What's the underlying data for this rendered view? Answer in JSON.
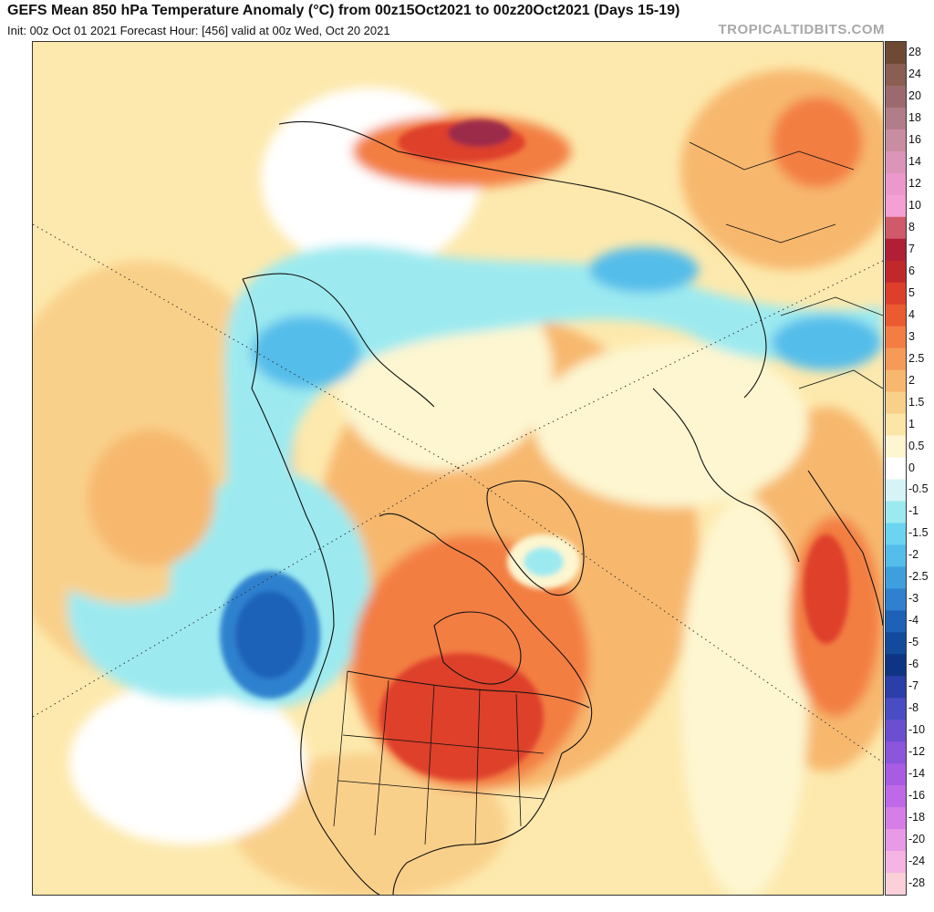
{
  "header": {
    "title": "GEFS Mean 850 hPa Temperature Anomaly (°C) from 00z15Oct2021 to 00z20Oct2021 (Days 15-19)",
    "subtitle": "Init: 00z Oct 01 2021   Forecast Hour: [456]   valid at 00z Wed, Oct 20 2021",
    "brand": "TROPICALTIDBITS.COM"
  },
  "colorbar": {
    "levels": [
      "28",
      "24",
      "20",
      "18",
      "16",
      "14",
      "12",
      "10",
      "8",
      "7",
      "6",
      "5",
      "4",
      "3",
      "2.5",
      "2",
      "1.5",
      "1",
      "0.5",
      "0",
      "-0.5",
      "-1",
      "-1.5",
      "-2",
      "-2.5",
      "-3",
      "-4",
      "-5",
      "-6",
      "-7",
      "-8",
      "-10",
      "-12",
      "-14",
      "-16",
      "-18",
      "-20",
      "-24",
      "-28"
    ],
    "colors": [
      "#6e4a35",
      "#8a5e52",
      "#9c6a6e",
      "#b07d88",
      "#c68ea0",
      "#da95b8",
      "#ec98cc",
      "#f4a0d4",
      "#d05a6a",
      "#b01f35",
      "#c0282a",
      "#de3f2b",
      "#ec5a30",
      "#f37e43",
      "#f69a58",
      "#f7b86e",
      "#f9d08a",
      "#fbe6a8",
      "#fdf6d0",
      "#ffffff",
      "#d6f4f6",
      "#9ceaf0",
      "#6cd4f0",
      "#55bdea",
      "#3f9fde",
      "#2f81cf",
      "#1e62b8",
      "#134a9c",
      "#0d3583",
      "#2c3ea8",
      "#4a4cc4",
      "#6c4fd0",
      "#8b55dc",
      "#a85ce4",
      "#c069e8",
      "#d77ee6",
      "#e89ae6",
      "#f4b5e4",
      "#fbd0d8"
    ]
  },
  "map": {
    "name": "850 hPa temperature anomaly polar stereographic map",
    "colors": {
      "background": "#fde9ad",
      "warm_light": "#f9d08a",
      "warm_mid": "#f7b86e",
      "warm_strong": "#f37e43",
      "warm_hot": "#de3f2b",
      "warm_max": "#9c2a4a",
      "neutral": "#ffffff",
      "cool_light": "#9ceaf0",
      "cool_mid": "#55bdea",
      "cool_strong": "#2f81cf",
      "cool_deep": "#1e62b8",
      "coast": "#111111"
    }
  }
}
